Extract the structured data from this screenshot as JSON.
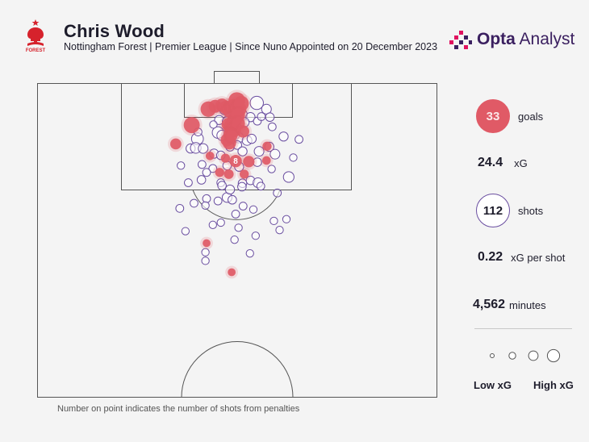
{
  "header": {
    "title": "Chris Wood",
    "subtitle": "Nottingham Forest | Premier League | Since Nuno Appointed on 20 December 2023",
    "crest_text": "FOREST",
    "brand_bold": "Opta",
    "brand_light": " Analyst"
  },
  "stats": {
    "goals_value": "33",
    "goals_label": "goals",
    "xg_value": "24.4",
    "xg_label": "xG",
    "shots_value": "112",
    "shots_label": "shots",
    "xg_per_shot_value": "0.22",
    "xg_per_shot_label": "xG per shot",
    "minutes_value": "4,562",
    "minutes_label": "minutes"
  },
  "legend": {
    "low": "Low xG",
    "high": "High xG"
  },
  "footnote": "Number on point indicates the number of shots from penalties",
  "colors": {
    "goal": "#e05a66",
    "shot_outline": "#6a4ea0",
    "pitch_line": "#555555",
    "brand": "#3b2060"
  },
  "chart_data": {
    "type": "scatter",
    "title": "Chris Wood",
    "subtitle": "Nottingham Forest | Premier League | Since Nuno Appointed on 20 December 2023",
    "note": "Number on point indicates the number of shots from penalties",
    "coordinate_system": "distance from goal line (y, metres) and lateral offset from pitch centre line (x, metres; negative = left)",
    "size_encodes": "xG",
    "goals": [
      {
        "x": -5.0,
        "y": 4.5,
        "xg": 0.45
      },
      {
        "x": -3.8,
        "y": 4.0,
        "xg": 0.28
      },
      {
        "x": -2.6,
        "y": 3.8,
        "xg": 0.3
      },
      {
        "x": -1.9,
        "y": 4.2,
        "xg": 0.33
      },
      {
        "x": -1.3,
        "y": 4.8,
        "xg": 0.32
      },
      {
        "x": -0.6,
        "y": 4.0,
        "xg": 0.38
      },
      {
        "x": 0.0,
        "y": 3.0,
        "xg": 0.55
      },
      {
        "x": 0.3,
        "y": 4.5,
        "xg": 0.48
      },
      {
        "x": 0.8,
        "y": 3.5,
        "xg": 0.42
      },
      {
        "x": -0.4,
        "y": 6.4,
        "xg": 0.4
      },
      {
        "x": 0.2,
        "y": 5.6,
        "xg": 0.36
      },
      {
        "x": -1.5,
        "y": 7.2,
        "xg": 0.3
      },
      {
        "x": -1.0,
        "y": 7.6,
        "xg": 0.45
      },
      {
        "x": -0.5,
        "y": 8.2,
        "xg": 0.35
      },
      {
        "x": 0.3,
        "y": 7.0,
        "xg": 0.28
      },
      {
        "x": 1.1,
        "y": 8.4,
        "xg": 0.25
      },
      {
        "x": -1.3,
        "y": 8.9,
        "xg": 0.22
      },
      {
        "x": -1.7,
        "y": 9.9,
        "xg": 0.28
      },
      {
        "x": -1.3,
        "y": 10.4,
        "xg": 0.32
      },
      {
        "x": -0.9,
        "y": 9.2,
        "xg": 0.2
      },
      {
        "x": -7.9,
        "y": 7.3,
        "xg": 0.5
      },
      {
        "x": -10.7,
        "y": 10.6,
        "xg": 0.18
      },
      {
        "x": 2.1,
        "y": 13.7,
        "xg": 0.2
      },
      {
        "x": -0.2,
        "y": 13.6,
        "xg": 0.25,
        "penalties": 8
      },
      {
        "x": -2.0,
        "y": 13.1,
        "xg": 0.1
      },
      {
        "x": -4.7,
        "y": 12.7,
        "xg": 0.08
      },
      {
        "x": -3.0,
        "y": 15.6,
        "xg": 0.1
      },
      {
        "x": -1.4,
        "y": 15.9,
        "xg": 0.12
      },
      {
        "x": 1.3,
        "y": 15.9,
        "xg": 0.1
      },
      {
        "x": 5.3,
        "y": 11.0,
        "xg": 0.1
      },
      {
        "x": 5.2,
        "y": 13.5,
        "xg": 0.08
      },
      {
        "x": -5.3,
        "y": 28.0,
        "xg": 0.06
      },
      {
        "x": -0.9,
        "y": 33.1,
        "xg": 0.06
      }
    ],
    "misses": [
      {
        "x": -6.9,
        "y": 9.7,
        "xg": 0.22
      },
      {
        "x": -2.0,
        "y": 4.4,
        "xg": 0.26
      },
      {
        "x": -0.6,
        "y": 5.2,
        "xg": 0.24
      },
      {
        "x": 0.8,
        "y": 5.5,
        "xg": 0.22
      },
      {
        "x": 3.5,
        "y": 3.4,
        "xg": 0.3
      },
      {
        "x": 5.2,
        "y": 4.5,
        "xg": 0.12
      },
      {
        "x": 2.4,
        "y": 5.9,
        "xg": 0.1
      },
      {
        "x": 5.8,
        "y": 5.9,
        "xg": 0.08
      },
      {
        "x": -1.2,
        "y": 6.0,
        "xg": 0.14
      },
      {
        "x": 1.3,
        "y": 6.8,
        "xg": 0.12
      },
      {
        "x": -3.1,
        "y": 6.4,
        "xg": 0.1
      },
      {
        "x": -1.7,
        "y": 6.7,
        "xg": 0.12
      },
      {
        "x": -3.3,
        "y": 8.6,
        "xg": 0.2
      },
      {
        "x": -2.6,
        "y": 9.1,
        "xg": 0.14
      },
      {
        "x": -0.5,
        "y": 9.0,
        "xg": 0.18
      },
      {
        "x": 0.3,
        "y": 9.5,
        "xg": 0.15
      },
      {
        "x": 1.8,
        "y": 10.0,
        "xg": 0.12
      },
      {
        "x": 2.6,
        "y": 9.7,
        "xg": 0.1
      },
      {
        "x": -8.1,
        "y": 11.4,
        "xg": 0.1
      },
      {
        "x": -7.2,
        "y": 11.3,
        "xg": 0.16
      },
      {
        "x": -5.9,
        "y": 11.4,
        "xg": 0.12
      },
      {
        "x": -4.0,
        "y": 12.3,
        "xg": 0.1
      },
      {
        "x": -2.8,
        "y": 12.6,
        "xg": 0.08
      },
      {
        "x": 0.1,
        "y": 10.8,
        "xg": 0.08
      },
      {
        "x": 1.0,
        "y": 11.9,
        "xg": 0.1
      },
      {
        "x": 3.9,
        "y": 11.9,
        "xg": 0.12
      },
      {
        "x": 5.7,
        "y": 11.1,
        "xg": 0.1
      },
      {
        "x": 6.7,
        "y": 12.4,
        "xg": 0.12
      },
      {
        "x": 8.2,
        "y": 9.3,
        "xg": 0.1
      },
      {
        "x": 10.9,
        "y": 9.8,
        "xg": 0.06
      },
      {
        "x": 3.6,
        "y": 13.8,
        "xg": 0.08
      },
      {
        "x": 0.4,
        "y": 14.6,
        "xg": 0.1
      },
      {
        "x": -1.7,
        "y": 14.4,
        "xg": 0.08
      },
      {
        "x": -4.2,
        "y": 14.9,
        "xg": 0.06
      },
      {
        "x": -5.3,
        "y": 15.6,
        "xg": 0.06
      },
      {
        "x": -6.2,
        "y": 16.9,
        "xg": 0.08
      },
      {
        "x": -2.8,
        "y": 17.4,
        "xg": 0.06
      },
      {
        "x": 1.0,
        "y": 17.5,
        "xg": 0.08
      },
      {
        "x": 2.4,
        "y": 17.0,
        "xg": 0.08
      },
      {
        "x": 3.7,
        "y": 17.4,
        "xg": 0.12
      },
      {
        "x": 9.1,
        "y": 16.4,
        "xg": 0.16
      },
      {
        "x": -1.7,
        "y": 20.0,
        "xg": 0.12
      },
      {
        "x": -0.8,
        "y": 20.4,
        "xg": 0.08
      },
      {
        "x": -5.3,
        "y": 20.2,
        "xg": 0.06
      },
      {
        "x": 7.1,
        "y": 19.2,
        "xg": 0.06
      },
      {
        "x": -3.3,
        "y": 20.6,
        "xg": 0.06
      },
      {
        "x": 1.1,
        "y": 21.5,
        "xg": 0.06
      },
      {
        "x": -10.0,
        "y": 21.9,
        "xg": 0.06
      },
      {
        "x": -7.5,
        "y": 21.0,
        "xg": 0.06
      },
      {
        "x": -5.5,
        "y": 21.4,
        "xg": 0.05
      },
      {
        "x": 8.7,
        "y": 23.8,
        "xg": 0.05
      },
      {
        "x": 7.5,
        "y": 25.7,
        "xg": 0.05
      },
      {
        "x": -0.4,
        "y": 27.4,
        "xg": 0.05
      },
      {
        "x": -5.5,
        "y": 31.1,
        "xg": 0.05
      },
      {
        "x": 2.3,
        "y": 29.8,
        "xg": 0.05
      },
      {
        "x": -5.5,
        "y": 29.6,
        "xg": 0.05
      },
      {
        "x": -0.2,
        "y": 22.9,
        "xg": 0.06
      },
      {
        "x": -6.8,
        "y": 8.5,
        "xg": 0.06
      },
      {
        "x": 3.6,
        "y": 6.6,
        "xg": 0.06
      },
      {
        "x": 4.3,
        "y": 5.8,
        "xg": 0.06
      },
      {
        "x": -2.6,
        "y": 17.9,
        "xg": 0.08
      },
      {
        "x": -1.2,
        "y": 18.6,
        "xg": 0.1
      },
      {
        "x": 0.9,
        "y": 18.1,
        "xg": 0.08
      },
      {
        "x": 4.2,
        "y": 18.0,
        "xg": 0.06
      },
      {
        "x": -8.5,
        "y": 17.4,
        "xg": 0.06
      },
      {
        "x": -6.1,
        "y": 14.2,
        "xg": 0.06
      },
      {
        "x": -1.2,
        "y": 11.1,
        "xg": 0.08
      },
      {
        "x": 6.2,
        "y": 7.6,
        "xg": 0.06
      },
      {
        "x": -4.1,
        "y": 7.2,
        "xg": 0.05
      },
      {
        "x": 2.9,
        "y": 22.1,
        "xg": 0.05
      },
      {
        "x": -9.8,
        "y": 14.4,
        "xg": 0.05
      },
      {
        "x": 6.1,
        "y": 15.0,
        "xg": 0.05
      },
      {
        "x": 9.9,
        "y": 13.0,
        "xg": 0.05
      },
      {
        "x": -2.8,
        "y": 24.4,
        "xg": 0.05
      },
      {
        "x": 0.3,
        "y": 25.3,
        "xg": 0.05
      },
      {
        "x": 6.5,
        "y": 24.1,
        "xg": 0.05
      },
      {
        "x": -9.0,
        "y": 25.9,
        "xg": 0.05
      },
      {
        "x": 3.3,
        "y": 26.7,
        "xg": 0.05
      },
      {
        "x": -4.2,
        "y": 24.8,
        "xg": 0.05
      }
    ],
    "legend_xg_sizes": [
      0.05,
      0.12,
      0.25,
      0.4
    ]
  }
}
